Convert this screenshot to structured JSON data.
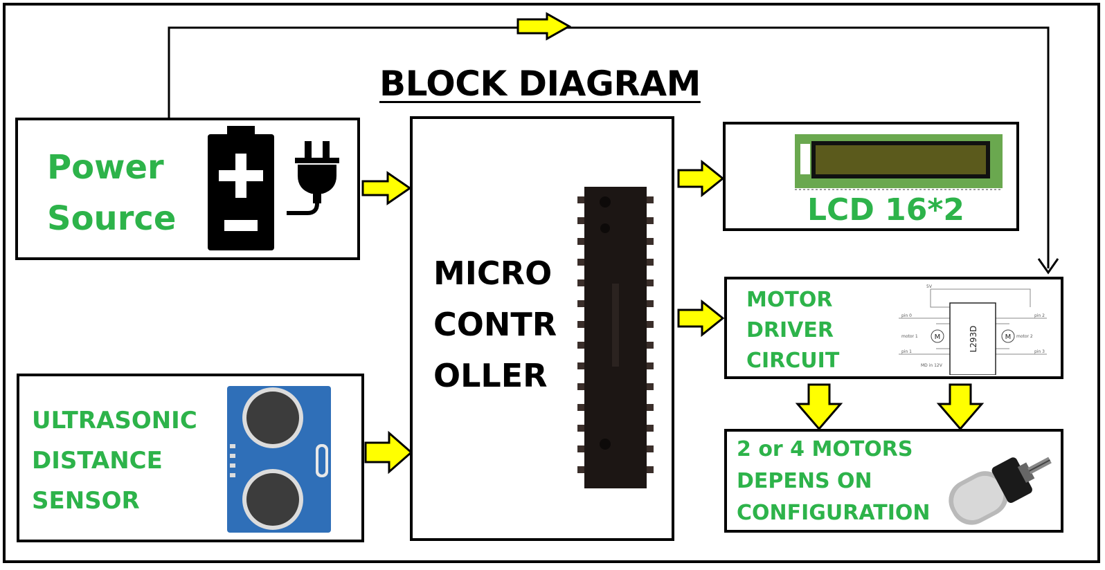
{
  "title": "BLOCK DIAGRAM",
  "blocks": {
    "power_source": {
      "line1": "Power",
      "line2": "Source"
    },
    "microcontroller": {
      "line1": "MICRO",
      "line2": "CONTR",
      "line3": "OLLER"
    },
    "lcd": {
      "label": "LCD 16*2"
    },
    "motor_driver": {
      "line1": "MOTOR",
      "line2": "DRIVER",
      "line3": "CIRCUIT"
    },
    "ultrasonic": {
      "line1": "ULTRASONIC",
      "line2": "DISTANCE",
      "line3": "SENSOR"
    },
    "motors": {
      "line1": "2 or 4 MOTORS",
      "line2": "DEPENS ON",
      "line3": "CONFIGURATION"
    }
  },
  "motor_driver_schematic": {
    "chip_label": "L293D",
    "labels": [
      "5V",
      "pin 0",
      "motor 1",
      "pin 1",
      "MD in 12V",
      "pin 2",
      "motor 2",
      "pin 3"
    ],
    "motor_symbol": "M"
  },
  "colors": {
    "label_green": "#2db34a",
    "arrow_yellow": "#ffff00",
    "lcd_board": "#6aa84f",
    "lcd_screen": "#5b5a1c"
  },
  "icons": [
    "battery-icon",
    "plug-icon",
    "lcd-module-icon",
    "ic-chip-icon",
    "ultrasonic-sensor-icon",
    "dc-motor-icon"
  ]
}
